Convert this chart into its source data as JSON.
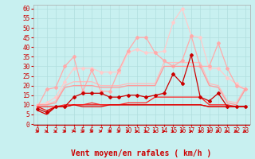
{
  "title": "",
  "xlabel": "Vent moyen/en rafales ( km/h )",
  "background_color": "#c8f0f0",
  "grid_color": "#b0dede",
  "x": [
    0,
    1,
    2,
    3,
    4,
    5,
    6,
    7,
    8,
    9,
    10,
    11,
    12,
    13,
    14,
    15,
    16,
    17,
    18,
    19,
    20,
    21,
    22,
    23
  ],
  "ylim": [
    0,
    62
  ],
  "yticks": [
    0,
    5,
    10,
    15,
    20,
    25,
    30,
    35,
    40,
    45,
    50,
    55,
    60
  ],
  "lines": [
    {
      "y": [
        7,
        5,
        9,
        9,
        10,
        9,
        9,
        9,
        10,
        10,
        10,
        10,
        10,
        10,
        10,
        10,
        10,
        10,
        10,
        9,
        9,
        9,
        9,
        9
      ],
      "color": "#dd0000",
      "lw": 0.9,
      "marker": null,
      "zorder": 5
    },
    {
      "y": [
        8,
        6,
        9,
        9,
        14,
        16,
        16,
        16,
        14,
        14,
        15,
        15,
        14,
        15,
        16,
        26,
        21,
        36,
        14,
        12,
        16,
        9,
        9,
        9
      ],
      "color": "#cc0000",
      "lw": 0.9,
      "marker": "D",
      "ms": 2.0,
      "zorder": 6
    },
    {
      "y": [
        9,
        7,
        9,
        9,
        10,
        10,
        10,
        10,
        10,
        10,
        10,
        10,
        10,
        10,
        10,
        10,
        10,
        10,
        10,
        9,
        9,
        9,
        9,
        9
      ],
      "color": "#ee1111",
      "lw": 0.9,
      "marker": null,
      "zorder": 4
    },
    {
      "y": [
        9,
        9,
        9,
        10,
        10,
        10,
        11,
        10,
        10,
        10,
        11,
        11,
        11,
        14,
        14,
        14,
        14,
        14,
        14,
        10,
        10,
        10,
        9,
        9
      ],
      "color": "#ff2222",
      "lw": 0.9,
      "marker": null,
      "zorder": 4
    },
    {
      "y": [
        9,
        18,
        19,
        30,
        35,
        17,
        28,
        17,
        17,
        28,
        38,
        45,
        45,
        37,
        33,
        30,
        33,
        46,
        30,
        30,
        42,
        29,
        20,
        18
      ],
      "color": "#ffaaaa",
      "lw": 0.9,
      "marker": "D",
      "ms": 2.0,
      "zorder": 3
    },
    {
      "y": [
        10,
        10,
        11,
        19,
        20,
        20,
        20,
        19,
        19,
        19,
        20,
        20,
        20,
        20,
        30,
        30,
        30,
        30,
        30,
        20,
        19,
        11,
        10,
        18
      ],
      "color": "#ff9999",
      "lw": 0.9,
      "marker": null,
      "zorder": 3
    },
    {
      "y": [
        10,
        11,
        14,
        22,
        29,
        29,
        29,
        27,
        27,
        27,
        37,
        39,
        37,
        37,
        38,
        53,
        60,
        46,
        45,
        29,
        29,
        24,
        21,
        18
      ],
      "color": "#ffcccc",
      "lw": 0.9,
      "marker": "D",
      "ms": 2.0,
      "zorder": 2
    },
    {
      "y": [
        10,
        10,
        12,
        20,
        22,
        22,
        22,
        20,
        20,
        20,
        21,
        21,
        21,
        21,
        32,
        32,
        32,
        32,
        32,
        21,
        20,
        12,
        11,
        19
      ],
      "color": "#ffbbbb",
      "lw": 0.9,
      "marker": null,
      "zorder": 2
    }
  ],
  "xlabel_color": "#cc0000",
  "tick_color": "#cc0000",
  "tick_fontsize": 5.5,
  "xlabel_fontsize": 7
}
